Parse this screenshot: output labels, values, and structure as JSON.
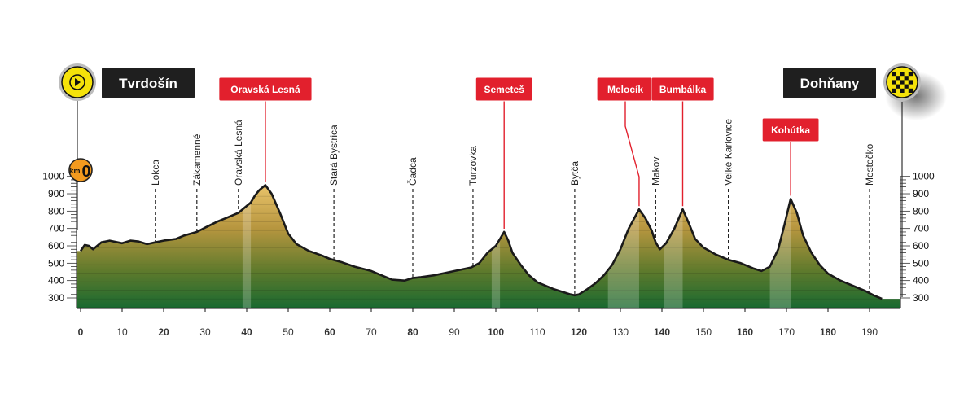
{
  "start": {
    "name": "Tvrdošín",
    "km_badge": "km",
    "km_value": "0"
  },
  "finish": {
    "name": "Dohňany"
  },
  "chart_data": {
    "type": "area",
    "xlim": [
      0,
      193
    ],
    "ylim": [
      250,
      1000
    ],
    "x_ticks": [
      0,
      10,
      20,
      30,
      40,
      50,
      60,
      70,
      80,
      90,
      100,
      110,
      120,
      130,
      140,
      150,
      160,
      170,
      180,
      190
    ],
    "x_tick_labels": [
      "0",
      "10",
      "20",
      "30",
      "40",
      "50",
      "60",
      "70",
      "80",
      "90",
      "100",
      "110",
      "120",
      "130",
      "140",
      "150",
      "160",
      "170",
      "180",
      "190"
    ],
    "y_ticks": [
      300,
      400,
      500,
      600,
      700,
      800,
      900,
      1000
    ],
    "y_tick_labels": [
      "300",
      "400",
      "500",
      "600",
      "700",
      "800",
      "900",
      "1000"
    ],
    "x": [
      0,
      1,
      2,
      3,
      5,
      7,
      10,
      12,
      14,
      16,
      18,
      20,
      23,
      25,
      28,
      30,
      33,
      35,
      38,
      40,
      41,
      42,
      43,
      44.5,
      46,
      48,
      50,
      52,
      55,
      58,
      60,
      63,
      66,
      70,
      73,
      75,
      78,
      80,
      82,
      85,
      88,
      91,
      94,
      96,
      98,
      100,
      101,
      102,
      103,
      104,
      106,
      108,
      110,
      112,
      114,
      116,
      118,
      119,
      120,
      122,
      124,
      126,
      128,
      130,
      132,
      134.5,
      136,
      137.5,
      138.5,
      139.5,
      141,
      143,
      145,
      146.5,
      148,
      150,
      153,
      156,
      159,
      162,
      164,
      166,
      168,
      169.5,
      171,
      172.5,
      174,
      176,
      178,
      180,
      183,
      186,
      189,
      191,
      193
    ],
    "elevation": [
      570,
      605,
      600,
      580,
      620,
      630,
      615,
      630,
      625,
      610,
      620,
      630,
      640,
      660,
      680,
      705,
      740,
      760,
      790,
      830,
      850,
      890,
      920,
      950,
      900,
      790,
      670,
      610,
      570,
      545,
      525,
      505,
      480,
      455,
      425,
      405,
      400,
      415,
      420,
      430,
      445,
      460,
      475,
      500,
      560,
      600,
      640,
      680,
      630,
      560,
      490,
      430,
      390,
      370,
      350,
      335,
      320,
      315,
      320,
      350,
      385,
      430,
      490,
      580,
      700,
      810,
      760,
      690,
      620,
      580,
      615,
      700,
      810,
      730,
      640,
      590,
      550,
      520,
      500,
      470,
      455,
      480,
      580,
      720,
      870,
      790,
      660,
      560,
      490,
      440,
      400,
      370,
      340,
      315,
      295
    ],
    "towns": [
      {
        "name": "Lokca",
        "km": 18
      },
      {
        "name": "Zákamenné",
        "km": 28
      },
      {
        "name": "Oravská Lesná",
        "km": 38
      },
      {
        "name": "Stará Bystrica",
        "km": 61
      },
      {
        "name": "Čadca",
        "km": 80
      },
      {
        "name": "Turzovka",
        "km": 94.5
      },
      {
        "name": "Bytča",
        "km": 119
      },
      {
        "name": "Makov",
        "km": 138.5
      },
      {
        "name": "Velké Karlovice",
        "km": 156
      },
      {
        "name": "Mestečko",
        "km": 190
      }
    ],
    "climbs": [
      {
        "name": "Oravská Lesná",
        "km": 44.5,
        "elev": 950
      },
      {
        "name": "Semeteš",
        "km": 102,
        "elev": 680
      },
      {
        "name": "Melocík",
        "km": 134.5,
        "elev": 810
      },
      {
        "name": "Bumbálka",
        "km": 145,
        "elev": 810
      },
      {
        "name": "Kohútka",
        "km": 171,
        "elev": 870
      }
    ],
    "climb_bands": [
      [
        39,
        41
      ],
      [
        99,
        101
      ],
      [
        127,
        134.5
      ],
      [
        140.5,
        145
      ],
      [
        166,
        171
      ]
    ]
  },
  "colors": {
    "profile_top": "#d8a84a",
    "profile_bottom": "#1d6e33",
    "climb_box": "#e2202d",
    "end_box": "#1f1f1f",
    "start_circle": "#f5e20a"
  }
}
